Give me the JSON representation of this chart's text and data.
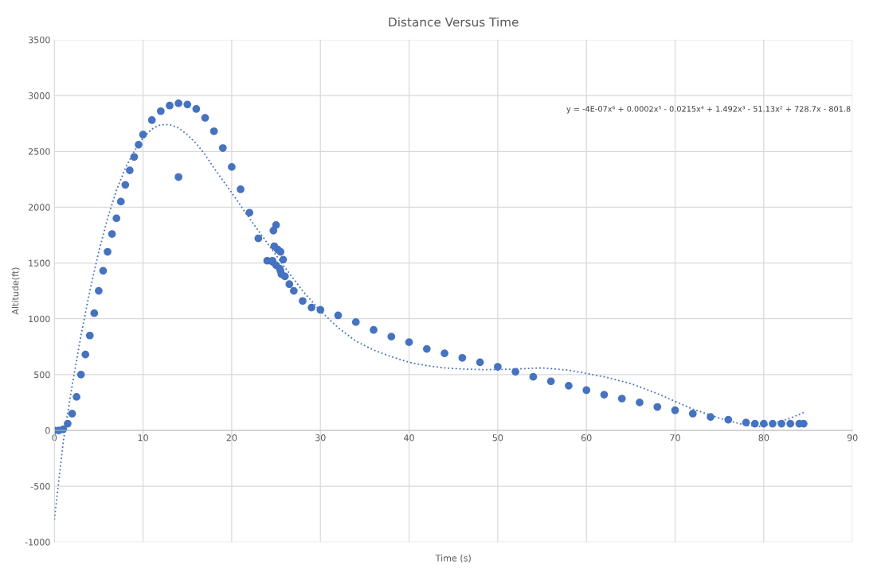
{
  "chart_data": {
    "type": "scatter",
    "title": "Distance Versus Time",
    "xlabel": "Time (s)",
    "ylabel": "Altitude(ft)",
    "xlim": [
      0,
      90
    ],
    "xticks": [
      0,
      10,
      20,
      30,
      40,
      50,
      60,
      70,
      80,
      90
    ],
    "ylim": [
      -1000,
      3500
    ],
    "yticks": [
      -1000,
      -500,
      0,
      500,
      1000,
      1500,
      2000,
      2500,
      3000,
      3500
    ],
    "grid": true,
    "marker": "circle",
    "annotations": [
      "y = -4E-07x⁶ + 0.0002x⁵ - 0.0215x⁴ + 1.492x³ - 51.13x² + 728.7x - 801.8"
    ],
    "series": [
      {
        "color": "#4472c4",
        "x": [
          0,
          0.5,
          1,
          1.5,
          2,
          2.5,
          3,
          3.5,
          4,
          4.5,
          5,
          5.5,
          6,
          6.5,
          7,
          7.5,
          8,
          8.5,
          9,
          9.5,
          10,
          11,
          12,
          13,
          14,
          15,
          16,
          17,
          18,
          19,
          20,
          21,
          22,
          23,
          24,
          24.6,
          25,
          25.5,
          26,
          26.5,
          27,
          28,
          29,
          30,
          32,
          34,
          36,
          38,
          40,
          42,
          44,
          46,
          48,
          50,
          52,
          54,
          56,
          58,
          60,
          62,
          64,
          66,
          68,
          70,
          72,
          74,
          76,
          78,
          79,
          80,
          81,
          82,
          83,
          84,
          84.5,
          14,
          24.7,
          25,
          24.8,
          25.2,
          25.5,
          25.8,
          24.6,
          25.4,
          25.6
        ],
        "values": [
          0,
          0,
          10,
          60,
          150,
          300,
          500,
          680,
          850,
          1050,
          1250,
          1430,
          1600,
          1760,
          1900,
          2050,
          2200,
          2330,
          2450,
          2560,
          2650,
          2780,
          2860,
          2910,
          2930,
          2920,
          2880,
          2800,
          2680,
          2530,
          2360,
          2160,
          1950,
          1720,
          1520,
          1520,
          1480,
          1430,
          1380,
          1310,
          1250,
          1160,
          1100,
          1080,
          1030,
          970,
          900,
          840,
          790,
          730,
          690,
          650,
          610,
          570,
          525,
          480,
          440,
          400,
          360,
          320,
          285,
          250,
          210,
          180,
          150,
          120,
          95,
          70,
          60,
          60,
          60,
          60,
          60,
          60,
          60,
          2270,
          1790,
          1840,
          1650,
          1620,
          1600,
          1530,
          1510,
          1450,
          1400
        ]
      },
      {
        "type": "line",
        "color": "#4472c4",
        "marker": "none",
        "line_style": "dotted",
        "x": [
          0,
          1,
          2,
          3,
          4,
          5,
          6,
          7,
          8,
          9,
          10,
          11,
          12,
          13,
          14,
          15,
          16,
          17,
          18,
          20,
          22,
          24,
          26,
          28,
          30,
          32,
          34,
          36,
          38,
          40,
          42,
          44,
          46,
          48,
          50,
          52,
          55,
          58,
          60,
          62,
          65,
          68,
          70,
          72,
          75,
          78,
          79.5,
          81,
          83,
          84.5
        ],
        "values": [
          -800,
          -100,
          400,
          850,
          1250,
          1600,
          1900,
          2150,
          2350,
          2500,
          2620,
          2700,
          2740,
          2740,
          2710,
          2650,
          2570,
          2470,
          2350,
          2130,
          1900,
          1680,
          1460,
          1250,
          1070,
          920,
          800,
          720,
          660,
          610,
          580,
          560,
          550,
          545,
          545,
          550,
          560,
          540,
          510,
          480,
          420,
          330,
          260,
          190,
          110,
          45,
          35,
          60,
          110,
          160
        ]
      }
    ]
  }
}
